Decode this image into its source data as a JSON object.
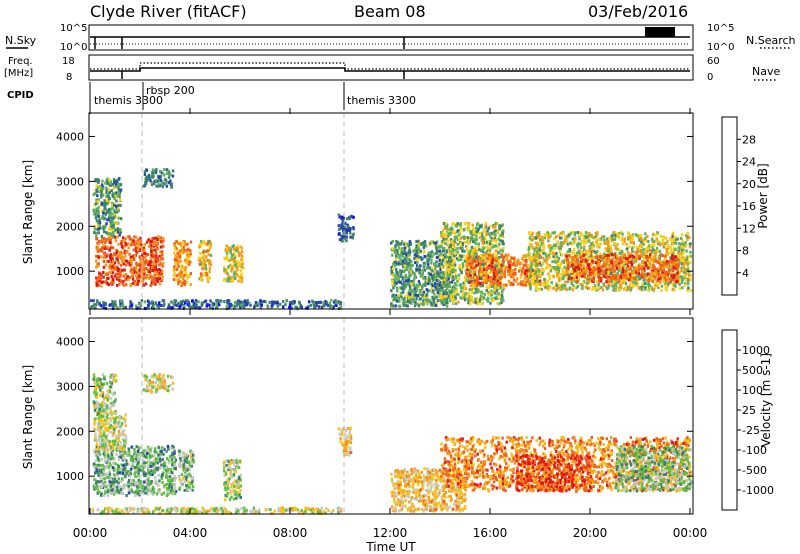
{
  "header": {
    "station": "Clyde River (fitACF)",
    "beam": "Beam 08",
    "date": "03/Feb/2016"
  },
  "top_panels": {
    "nsky_label": "N.Sky",
    "nsearch_label": "N.Search",
    "freq_label_1": "Freq.",
    "freq_label_2": "[MHz]",
    "nave_label": "Nave",
    "cpid_label": "CPID",
    "left_ticks_nsky": [
      "10^5",
      "10^0"
    ],
    "right_ticks_nsky": [
      "10^5",
      "10^0"
    ],
    "left_ticks_freq": [
      "18",
      "8"
    ],
    "right_ticks_nave": [
      "60",
      "0"
    ],
    "cpid_segments": [
      {
        "label": "themis 3300",
        "start_h": 0.0
      },
      {
        "label": "rbsp 200",
        "start_h": 2.0
      },
      {
        "label": "themis 3300",
        "start_h": 10.0
      }
    ]
  },
  "colors": {
    "power": [
      "#1010ee",
      "#2646a8",
      "#3d7f6e",
      "#5faf5f",
      "#f5d21a",
      "#f79a1a",
      "#f0601a",
      "#e01414"
    ],
    "velocity": [
      "#e01414",
      "#f0601a",
      "#f79a1a",
      "#f5c21a",
      "#c8c8c0",
      "#5fbf3f",
      "#3d7f6e",
      "#2646a8",
      "#1a3ad8"
    ]
  },
  "chart_data": [
    {
      "type": "heatmap",
      "panel": "power",
      "ylabel": "Slant Range [km]",
      "xlim_hours": [
        0,
        24
      ],
      "ylim_km": [
        180,
        4500
      ],
      "y_ticks": [
        "4000",
        "3000",
        "2000",
        "1000"
      ],
      "colorbar_label": "Power [dB]",
      "colorbar_ticks": [
        "28",
        "24",
        "20",
        "16",
        "12",
        "8",
        "4"
      ],
      "colorbar_range": [
        0,
        32
      ],
      "regions": [
        {
          "h0": 0.2,
          "h1": 2.9,
          "r0": 700,
          "r1": 1800,
          "v": 26
        },
        {
          "h0": 0.1,
          "h1": 1.2,
          "r0": 1800,
          "r1": 3100,
          "v": 12
        },
        {
          "h0": 2.1,
          "h1": 3.3,
          "r0": 2900,
          "r1": 3300,
          "v": 10
        },
        {
          "h0": 3.3,
          "h1": 4.0,
          "r0": 700,
          "r1": 1700,
          "v": 22
        },
        {
          "h0": 4.3,
          "h1": 4.8,
          "r0": 800,
          "r1": 1700,
          "v": 20
        },
        {
          "h0": 5.3,
          "h1": 6.1,
          "r0": 800,
          "r1": 1600,
          "v": 18
        },
        {
          "h0": 0.0,
          "h1": 10.0,
          "r0": 200,
          "r1": 380,
          "v": 8
        },
        {
          "h0": 9.9,
          "h1": 10.5,
          "r0": 1700,
          "r1": 2300,
          "v": 7
        },
        {
          "h0": 12.0,
          "h1": 14.5,
          "r0": 250,
          "r1": 1700,
          "v": 12
        },
        {
          "h0": 14.0,
          "h1": 16.5,
          "r0": 300,
          "r1": 2100,
          "v": 15
        },
        {
          "h0": 15.0,
          "h1": 18.0,
          "r0": 700,
          "r1": 1400,
          "v": 24
        },
        {
          "h0": 17.5,
          "h1": 24.0,
          "r0": 600,
          "r1": 1900,
          "v": 17
        },
        {
          "h0": 19.0,
          "h1": 23.5,
          "r0": 800,
          "r1": 1400,
          "v": 25
        }
      ]
    },
    {
      "type": "heatmap",
      "panel": "velocity",
      "ylabel": "Slant Range [km]",
      "xlabel": "Time UT",
      "xlim_hours": [
        0,
        24
      ],
      "ylim_km": [
        180,
        4500
      ],
      "x_ticks": [
        "00:00",
        "04:00",
        "08:00",
        "12:00",
        "16:00",
        "20:00",
        "00:00"
      ],
      "y_ticks": [
        "4000",
        "3000",
        "2000",
        "1000"
      ],
      "colorbar_label": "Velocity [m s-1]",
      "colorbar_ticks": [
        "1000",
        "500",
        "100",
        "25",
        "-25",
        "-100",
        "-500",
        "-1000"
      ],
      "colorbar_range": [
        -1200,
        1200
      ],
      "regions": [
        {
          "h0": 0.1,
          "h1": 3.4,
          "r0": 600,
          "r1": 1700,
          "v": 300
        },
        {
          "h0": 0.1,
          "h1": 1.4,
          "r0": 1600,
          "r1": 2400,
          "v": 0
        },
        {
          "h0": 0.1,
          "h1": 1.0,
          "r0": 2400,
          "r1": 3300,
          "v": 80
        },
        {
          "h0": 2.1,
          "h1": 3.3,
          "r0": 2900,
          "r1": 3300,
          "v": -150
        },
        {
          "h0": 3.5,
          "h1": 4.1,
          "r0": 700,
          "r1": 1600,
          "v": 200
        },
        {
          "h0": 5.3,
          "h1": 6.0,
          "r0": 500,
          "r1": 1400,
          "v": 150
        },
        {
          "h0": 0.0,
          "h1": 10.0,
          "r0": 200,
          "r1": 330,
          "v": -40
        },
        {
          "h0": 9.9,
          "h1": 10.4,
          "r0": 1500,
          "r1": 2100,
          "v": -300
        },
        {
          "h0": 12.0,
          "h1": 15.0,
          "r0": 250,
          "r1": 1200,
          "v": -300
        },
        {
          "h0": 14.0,
          "h1": 24.0,
          "r0": 700,
          "r1": 1900,
          "v": -600
        },
        {
          "h0": 17.0,
          "h1": 20.0,
          "r0": 700,
          "r1": 1500,
          "v": -900
        },
        {
          "h0": 21.0,
          "h1": 24.0,
          "r0": 700,
          "r1": 1700,
          "v": 200
        }
      ]
    }
  ]
}
